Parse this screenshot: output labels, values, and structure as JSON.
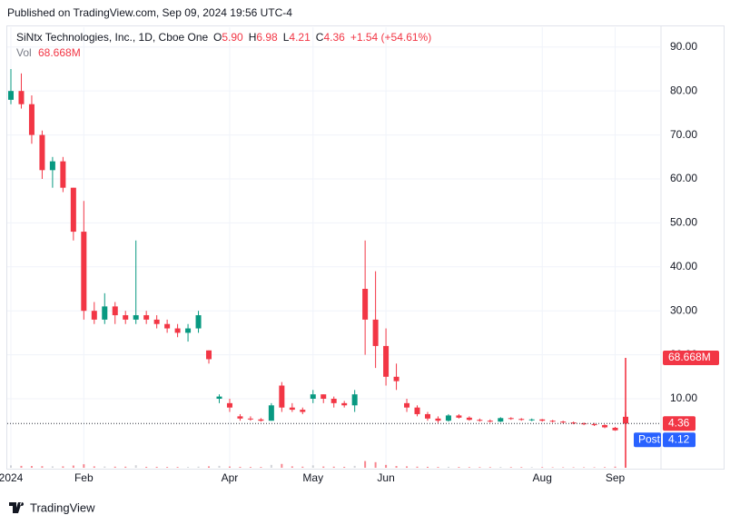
{
  "header": {
    "published": "Published on TradingView.com, Sep 09, 2024 19:56 UTC-4",
    "footer": "TradingView"
  },
  "chart_data": {
    "type": "candlestick",
    "title": "SiNtx Technologies, Inc., 1D, Cboe One",
    "ohlc_legend": [
      {
        "key": "O",
        "value": "5.90"
      },
      {
        "key": "H",
        "value": "6.98"
      },
      {
        "key": "L",
        "value": "4.21"
      },
      {
        "key": "C",
        "value": "4.36"
      }
    ],
    "change": "+1.54 (+54.61%)",
    "volume_name": "Vol",
    "categories": [
      "2024",
      null,
      null,
      null,
      null,
      null,
      null,
      "Feb",
      null,
      null,
      null,
      null,
      null,
      null,
      null,
      null,
      null,
      null,
      null,
      null,
      null,
      "Apr",
      null,
      null,
      null,
      null,
      null,
      null,
      null,
      "May",
      null,
      null,
      null,
      null,
      null,
      null,
      "Jun",
      null,
      null,
      null,
      null,
      null,
      null,
      null,
      null,
      null,
      null,
      null,
      null,
      null,
      null,
      "Aug",
      null,
      null,
      null,
      null,
      null,
      null,
      "Sep",
      null
    ],
    "open": [
      78,
      80,
      77,
      70,
      62,
      64,
      58,
      48,
      30,
      28,
      31,
      29,
      28,
      29,
      28,
      27,
      26,
      25,
      26,
      21,
      10,
      9,
      6,
      5.5,
      5.3,
      5,
      13,
      8,
      7.5,
      10,
      11,
      10,
      9,
      8.5,
      35,
      28,
      22,
      15,
      9,
      8,
      6.5,
      5.5,
      5,
      6.2,
      5.7,
      5.2,
      5,
      4.8,
      5.6,
      5.4,
      5.2,
      5.3,
      5,
      4.8,
      4.6,
      4.4,
      4.2,
      4,
      3.4,
      5.9
    ],
    "high": [
      85,
      84,
      79,
      71,
      65,
      65,
      58,
      55,
      32,
      34,
      32,
      30,
      46,
      30,
      29,
      28,
      27,
      27,
      30,
      21,
      11,
      10,
      6.5,
      6,
      5.6,
      9,
      13.8,
      9,
      8,
      12,
      11,
      10.5,
      9.5,
      12,
      46,
      39,
      26,
      18,
      10,
      8.5,
      7,
      6,
      6.5,
      6.5,
      6,
      5.5,
      5.3,
      5.8,
      5.8,
      5.6,
      5.5,
      5.4,
      5.2,
      5,
      4.8,
      4.6,
      4.5,
      4.2,
      3.6,
      6.98
    ],
    "low": [
      77,
      76,
      68,
      60,
      58,
      57,
      46,
      28,
      27,
      27,
      27,
      27,
      27,
      27,
      26,
      25,
      24,
      23,
      25,
      18,
      9,
      7,
      5,
      5,
      4.8,
      5,
      7,
      7,
      6.5,
      9,
      9,
      8,
      8,
      7,
      20,
      17,
      13,
      12,
      7,
      6,
      5,
      4.5,
      4.8,
      5.5,
      5,
      4.8,
      4.6,
      4.7,
      5.2,
      5,
      4.9,
      4.8,
      4.6,
      4.4,
      4.2,
      4,
      3.8,
      3.3,
      2.7,
      4.21
    ],
    "close": [
      80,
      77,
      70,
      62,
      64,
      58,
      48,
      30,
      28,
      31,
      29,
      28,
      29,
      28,
      27,
      26,
      25,
      26,
      29,
      19,
      10.5,
      8,
      5.5,
      5.3,
      5,
      8.5,
      8,
      7.5,
      7,
      11,
      10,
      9,
      8.5,
      11,
      28,
      22,
      15,
      14,
      8,
      6.5,
      5.5,
      5,
      6.2,
      5.7,
      5.2,
      5,
      4.8,
      5.6,
      5.4,
      5.2,
      5.3,
      5,
      4.8,
      4.6,
      4.4,
      4.2,
      4,
      3.5,
      2.82,
      4.36
    ],
    "volume": [
      1500000,
      1200000,
      1100000,
      1000000,
      900000,
      900000,
      1400000,
      2200000,
      900000,
      800000,
      700000,
      700000,
      1600000,
      600000,
      600000,
      500000,
      500000,
      500000,
      700000,
      900000,
      1200000,
      800000,
      600000,
      500000,
      500000,
      1800000,
      2400000,
      900000,
      700000,
      1500000,
      800000,
      700000,
      600000,
      1200000,
      4200000,
      3500000,
      1800000,
      1100000,
      900000,
      700000,
      600000,
      500000,
      600000,
      500000,
      400000,
      400000,
      400000,
      500000,
      400000,
      400000,
      400000,
      400000,
      300000,
      300000,
      300000,
      300000,
      300000,
      400000,
      700000,
      68668000
    ],
    "volume_labels": [
      null,
      null,
      null,
      null,
      null,
      null,
      null,
      null,
      null,
      null,
      null,
      null,
      null,
      null,
      null,
      null,
      null,
      null,
      null,
      null,
      null,
      null,
      null,
      null,
      null,
      null,
      null,
      null,
      null,
      null,
      null,
      null,
      null,
      null,
      null,
      null,
      null,
      null,
      null,
      null,
      null,
      null,
      null,
      null,
      null,
      null,
      null,
      null,
      null,
      null,
      null,
      null,
      null,
      null,
      null,
      null,
      null,
      null,
      null,
      "68.668M"
    ],
    "up_color": "#089981",
    "down_color": "#f23645",
    "volume_color": "#b2b5be",
    "ylim": [
      -5.7,
      94.5
    ],
    "yticks": [
      {
        "value": 10,
        "label": "10.00"
      },
      {
        "value": 20,
        "label": "20.00"
      },
      {
        "value": 30,
        "label": "30.00"
      },
      {
        "value": 40,
        "label": "40.00"
      },
      {
        "value": 50,
        "label": "50.00"
      },
      {
        "value": 60,
        "label": "60.00"
      },
      {
        "value": 70,
        "label": "70.00"
      },
      {
        "value": 80,
        "label": "80.00"
      },
      {
        "value": 90,
        "label": "90.00"
      }
    ],
    "grid": true,
    "last_price": 4.36,
    "post_market": {
      "label": "Post",
      "value": 4.12
    }
  }
}
